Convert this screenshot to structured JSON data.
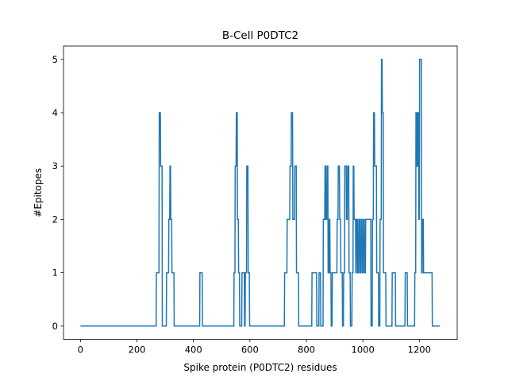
{
  "chart_data": {
    "type": "line",
    "title": "B-Cell P0DTC2",
    "xlabel": "Spike protein (P0DTC2) residues",
    "ylabel": "#Epitopes",
    "xlim": [
      -60,
      1334
    ],
    "ylim": [
      -0.25,
      5.25
    ],
    "xticks": [
      0,
      200,
      400,
      600,
      800,
      1000,
      1200
    ],
    "yticks": [
      0,
      1,
      2,
      3,
      4,
      5
    ],
    "grid": false,
    "color": "#1f77b4",
    "series": [
      {
        "x": [
          0,
          268,
          269,
          278,
          279,
          283,
          284,
          289,
          290,
          304,
          305,
          312,
          313,
          316,
          317,
          319,
          320,
          323,
          324,
          331,
          332,
          422,
          423,
          431,
          432,
          543,
          544,
          547,
          548,
          551,
          552,
          555,
          556,
          559,
          560,
          563,
          564,
          571,
          572,
          580,
          581,
          583,
          584,
          588,
          589,
          593,
          594,
          598,
          599,
          722,
          723,
          731,
          732,
          741,
          742,
          746,
          747,
          751,
          752,
          758,
          759,
          764,
          765,
          772,
          773,
          819,
          820,
          836,
          837,
          844,
          845,
          850,
          851,
          859,
          860,
          865,
          866,
          868,
          869,
          872,
          873,
          876,
          877,
          880,
          881,
          883,
          884,
          887,
          888,
          891,
          892,
          908,
          909,
          912,
          913,
          917,
          918,
          921,
          922,
          927,
          928,
          931,
          932,
          935,
          936,
          941,
          942,
          945,
          946,
          950,
          951,
          955,
          956,
          961,
          962,
          965,
          966,
          968,
          969,
          974,
          975,
          977,
          978,
          981,
          982,
          985,
          986,
          989,
          990,
          993,
          994,
          997,
          998,
          1001,
          1002,
          1005,
          1006,
          1009,
          1010,
          1028,
          1029,
          1033,
          1034,
          1037,
          1038,
          1041,
          1042,
          1048,
          1049,
          1055,
          1056,
          1060,
          1061,
          1065,
          1066,
          1068,
          1069,
          1072,
          1073,
          1081,
          1082,
          1103,
          1104,
          1115,
          1116,
          1149,
          1150,
          1157,
          1158,
          1183,
          1184,
          1187,
          1188,
          1191,
          1192,
          1194,
          1195,
          1197,
          1198,
          1200,
          1201,
          1207,
          1208,
          1210,
          1211,
          1214,
          1215,
          1231,
          1232,
          1245,
          1246,
          1273
        ],
        "y": [
          0,
          0,
          1,
          1,
          4,
          4,
          3,
          3,
          0,
          0,
          1,
          1,
          2,
          2,
          3,
          3,
          2,
          2,
          1,
          1,
          0,
          0,
          1,
          1,
          0,
          0,
          1,
          1,
          3,
          3,
          4,
          4,
          2,
          2,
          1,
          1,
          0,
          0,
          1,
          1,
          0,
          0,
          1,
          1,
          3,
          3,
          1,
          1,
          0,
          0,
          1,
          1,
          2,
          2,
          3,
          3,
          4,
          4,
          2,
          2,
          3,
          3,
          1,
          1,
          0,
          0,
          1,
          1,
          0,
          0,
          1,
          1,
          0,
          0,
          2,
          2,
          3,
          3,
          2,
          2,
          3,
          3,
          1,
          1,
          2,
          2,
          1,
          1,
          0,
          0,
          1,
          1,
          2,
          2,
          3,
          3,
          2,
          2,
          1,
          1,
          0,
          0,
          1,
          1,
          3,
          3,
          2,
          2,
          3,
          3,
          1,
          1,
          0,
          0,
          1,
          1,
          3,
          3,
          2,
          2,
          1,
          1,
          2,
          2,
          1,
          1,
          2,
          2,
          1,
          1,
          2,
          2,
          1,
          1,
          2,
          2,
          1,
          1,
          2,
          2,
          0,
          0,
          2,
          2,
          4,
          4,
          3,
          3,
          1,
          1,
          0,
          0,
          2,
          2,
          5,
          5,
          4,
          4,
          1,
          1,
          0,
          0,
          1,
          1,
          0,
          0,
          1,
          1,
          0,
          0,
          1,
          1,
          4,
          4,
          3,
          3,
          4,
          4,
          2,
          2,
          5,
          5,
          1,
          1,
          2,
          2,
          1,
          1,
          1,
          1,
          0,
          0
        ]
      }
    ]
  }
}
